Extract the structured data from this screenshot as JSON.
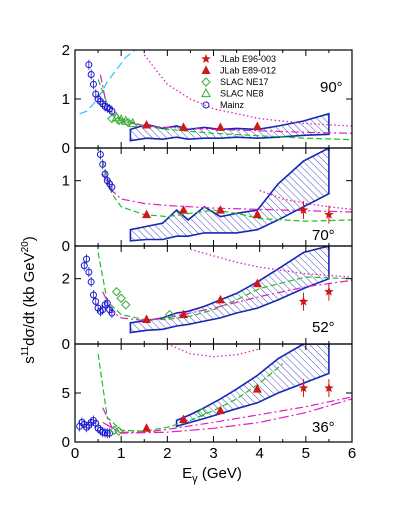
{
  "colors": {
    "band": "#1428b4",
    "jlab96": "#d01818",
    "jlab89": "#d01818",
    "slac_ne17": "#30b030",
    "slac_ne8": "#30b030",
    "mainz": "#1a1ad0",
    "green_curve": "#20c020",
    "magenta_curve": "#e020c0",
    "cyan_curve": "#20c8ff"
  },
  "axis_labels": {
    "ylabel_prefix": "s",
    "ylabel_exp": "11",
    "ylabel_main": "dσ/dt  (kb GeV",
    "ylabel_exp2": "20",
    "ylabel_tail": ")",
    "xlabel_main": "E",
    "xlabel_sub": "γ",
    "xlabel_unit": " (GeV)"
  },
  "legend": [
    {
      "label": "JLab E96-003",
      "marker": "star",
      "color": "#d01818"
    },
    {
      "label": "JLab E89-012",
      "marker": "triangle",
      "color": "#d01818"
    },
    {
      "label": "SLAC NE17",
      "marker": "diamond-open",
      "color": "#30b030"
    },
    {
      "label": "SLAC NE8",
      "marker": "triangle-open",
      "color": "#30b030"
    },
    {
      "label": "Mainz",
      "marker": "circle-open",
      "color": "#1a1ad0"
    }
  ],
  "x_ticks": [
    "0",
    "1",
    "2",
    "3",
    "4",
    "5",
    "6"
  ],
  "chart_data": {
    "type": "scatter",
    "xlim": [
      0,
      6
    ],
    "panels": [
      {
        "angle": "90°",
        "ylim": [
          0,
          2
        ],
        "y_ticks": [
          "0",
          "1",
          "2"
        ],
        "jlab_e89_012": {
          "x": [
            1.55,
            2.35,
            3.15,
            3.95
          ],
          "y": [
            0.47,
            0.42,
            0.42,
            0.44
          ]
        },
        "slac_ne8": {
          "x": [
            0.9,
            1.0,
            1.1,
            1.25
          ],
          "y": [
            0.62,
            0.58,
            0.55,
            0.5
          ]
        },
        "slac_ne17": {
          "x": [
            0.8,
            0.95,
            1.15
          ],
          "y": [
            0.6,
            0.56,
            0.52
          ]
        },
        "mainz": {
          "x": [
            0.3,
            0.35,
            0.4,
            0.45,
            0.5,
            0.55,
            0.6,
            0.65,
            0.7,
            0.75,
            0.8
          ],
          "y": [
            1.7,
            1.5,
            1.3,
            1.1,
            1.0,
            0.95,
            0.9,
            0.85,
            0.82,
            0.8,
            0.75
          ]
        },
        "band_upper": {
          "x": [
            1.2,
            1.55,
            1.9,
            2.2,
            2.45,
            2.8,
            3.15,
            3.5,
            3.95,
            4.4,
            4.95,
            5.5
          ],
          "y": [
            0.38,
            0.48,
            0.4,
            0.45,
            0.38,
            0.42,
            0.38,
            0.4,
            0.38,
            0.45,
            0.55,
            0.7
          ]
        },
        "band_lower": {
          "x": [
            1.2,
            1.55,
            1.9,
            2.2,
            2.45,
            2.8,
            3.15,
            3.5,
            3.95,
            4.4,
            4.95,
            5.5
          ],
          "y": [
            0.15,
            0.2,
            0.18,
            0.22,
            0.18,
            0.2,
            0.2,
            0.22,
            0.2,
            0.22,
            0.26,
            0.28
          ]
        },
        "green_curve": {
          "x": [
            0.5,
            0.7,
            1.0,
            1.5,
            2.0,
            3.0,
            4.0,
            5.0,
            6.0
          ],
          "y": [
            1.4,
            0.9,
            0.6,
            0.45,
            0.38,
            0.3,
            0.25,
            0.2,
            0.17
          ]
        },
        "magenta_dash": {
          "x": [
            0.55,
            0.7,
            1.0,
            1.5,
            2.0,
            3.0,
            4.0,
            5.0,
            6.0
          ],
          "y": [
            1.5,
            0.8,
            0.55,
            0.45,
            0.42,
            0.38,
            0.35,
            0.32,
            0.3
          ]
        },
        "magenta_dot": {
          "x": [
            1.5,
            2.0,
            2.5,
            3.0,
            4.0,
            5.0,
            6.0
          ],
          "y": [
            1.9,
            1.3,
            1.0,
            0.8,
            0.6,
            0.5,
            0.45
          ]
        },
        "cyan_curve": {
          "x": [
            0.1,
            0.25,
            0.4,
            0.55,
            0.7,
            0.9,
            1.1,
            1.3
          ],
          "y": [
            0.7,
            0.75,
            0.9,
            1.1,
            1.35,
            1.6,
            1.85,
            2.0
          ]
        }
      },
      {
        "angle": "70°",
        "ylim": [
          0,
          1.5
        ],
        "y_ticks": [
          "0",
          "1"
        ],
        "jlab_e96_003": {
          "x": [
            4.95,
            5.5
          ],
          "y": [
            0.55,
            0.48
          ]
        },
        "jlab_e89_012": {
          "x": [
            1.55,
            2.35,
            3.15,
            3.95
          ],
          "y": [
            0.48,
            0.55,
            0.55,
            0.48
          ]
        },
        "mainz": {
          "x": [
            0.55,
            0.6,
            0.65,
            0.7,
            0.75,
            0.8
          ],
          "y": [
            1.4,
            1.25,
            1.1,
            1.0,
            0.95,
            0.9
          ]
        },
        "band_upper": {
          "x": [
            1.2,
            1.55,
            1.9,
            2.2,
            2.45,
            2.8,
            3.15,
            3.5,
            3.95,
            4.4,
            4.95,
            5.5
          ],
          "y": [
            0.25,
            0.3,
            0.35,
            0.55,
            0.4,
            0.6,
            0.45,
            0.5,
            0.55,
            0.95,
            1.3,
            1.5
          ]
        },
        "band_lower": {
          "x": [
            1.2,
            1.55,
            1.9,
            2.2,
            2.45,
            2.8,
            3.15,
            3.5,
            3.95,
            4.4,
            4.95,
            5.5
          ],
          "y": [
            0.08,
            0.1,
            0.1,
            0.15,
            0.15,
            0.2,
            0.2,
            0.2,
            0.25,
            0.4,
            0.6,
            0.8
          ]
        },
        "green_curve": {
          "x": [
            0.6,
            0.8,
            1.0,
            1.5,
            2.0,
            2.5,
            3.0,
            3.5,
            4.0,
            5.0,
            6.0
          ],
          "y": [
            1.3,
            0.8,
            0.6,
            0.48,
            0.45,
            0.5,
            0.55,
            0.5,
            0.42,
            0.38,
            0.4
          ]
        },
        "magenta_dash": {
          "x": [
            0.6,
            0.8,
            1.0,
            1.5,
            2.0,
            3.0,
            4.0,
            5.0,
            6.0
          ],
          "y": [
            1.1,
            0.85,
            0.72,
            0.65,
            0.62,
            0.58,
            0.56,
            0.54,
            0.52
          ]
        },
        "magenta_dot": {
          "x": [
            4.0,
            4.5,
            5.0,
            5.5,
            6.0
          ],
          "y": [
            0.85,
            0.72,
            0.65,
            0.6,
            0.56
          ]
        }
      },
      {
        "angle": "52°",
        "ylim": [
          0,
          3
        ],
        "y_ticks": [
          "0",
          "2"
        ],
        "jlab_e96_003": {
          "x": [
            4.95,
            5.5
          ],
          "y": [
            1.3,
            1.6
          ]
        },
        "jlab_e89_012": {
          "x": [
            1.55,
            2.35,
            3.15,
            3.95
          ],
          "y": [
            0.75,
            0.9,
            1.35,
            1.85
          ]
        },
        "slac_ne17": {
          "x": [
            0.9,
            1.0,
            1.1,
            2.05
          ],
          "y": [
            1.6,
            1.4,
            1.2,
            0.9
          ]
        },
        "mainz": {
          "x": [
            0.2,
            0.25,
            0.3,
            0.35,
            0.4,
            0.45,
            0.5,
            0.55,
            0.6,
            0.65,
            0.7,
            0.75,
            0.8
          ],
          "y": [
            2.4,
            2.6,
            2.2,
            1.9,
            1.5,
            1.3,
            1.1,
            1.0,
            1.05,
            1.2,
            1.25,
            1.05,
            0.95
          ]
        },
        "band_upper": {
          "x": [
            1.2,
            1.55,
            1.9,
            2.2,
            2.45,
            2.8,
            3.15,
            3.5,
            3.95,
            4.4,
            4.95,
            5.5
          ],
          "y": [
            0.65,
            0.72,
            0.8,
            0.95,
            1.0,
            1.15,
            1.35,
            1.55,
            1.9,
            2.3,
            2.8,
            3.0
          ]
        },
        "band_lower": {
          "x": [
            1.2,
            1.55,
            1.9,
            2.2,
            2.45,
            2.8,
            3.15,
            3.5,
            3.95,
            4.4,
            4.95,
            5.5
          ],
          "y": [
            0.35,
            0.42,
            0.45,
            0.55,
            0.6,
            0.7,
            0.8,
            0.95,
            1.1,
            1.35,
            1.7,
            2.0
          ]
        },
        "green_curve": {
          "x": [
            0.5,
            0.7,
            1.0,
            1.5,
            2.0,
            2.5,
            3.0,
            3.5,
            4.0,
            5.0,
            6.0
          ],
          "y": [
            2.8,
            1.3,
            0.9,
            0.75,
            0.75,
            0.85,
            1.05,
            1.35,
            1.7,
            2.05,
            2.0
          ]
        },
        "magenta_dash": {
          "x": [
            0.6,
            0.8,
            1.0,
            1.5,
            2.0,
            3.0,
            4.0,
            5.0,
            6.0
          ],
          "y": [
            1.6,
            1.0,
            0.8,
            0.72,
            0.8,
            1.1,
            1.45,
            1.75,
            1.95
          ]
        },
        "magenta_dot": {
          "x": [
            2.5,
            3.0,
            3.5,
            4.0,
            4.5,
            5.0,
            5.5,
            6.0
          ],
          "y": [
            2.9,
            2.7,
            2.5,
            2.35,
            2.25,
            2.15,
            2.1,
            2.05
          ]
        }
      },
      {
        "angle": "36°",
        "ylim": [
          0,
          10
        ],
        "y_ticks": [
          "0",
          "5"
        ],
        "jlab_e96_003": {
          "x": [
            4.95,
            5.5
          ],
          "y": [
            5.5,
            5.5
          ]
        },
        "jlab_e89_012": {
          "x": [
            1.55,
            2.35,
            3.15,
            3.95
          ],
          "y": [
            1.4,
            2.3,
            3.2,
            5.4
          ]
        },
        "slac_ne17": {
          "x": [
            0.85,
            0.95,
            2.75
          ],
          "y": [
            1.2,
            1.1,
            3.0
          ]
        },
        "mainz": {
          "x": [
            0.1,
            0.15,
            0.2,
            0.25,
            0.3,
            0.35,
            0.4,
            0.45,
            0.5,
            0.55,
            0.6,
            0.65,
            0.7,
            0.75
          ],
          "y": [
            1.6,
            2.0,
            1.8,
            1.5,
            1.7,
            2.0,
            2.2,
            1.9,
            1.4,
            1.2,
            1.0,
            0.95,
            0.9,
            0.9
          ]
        },
        "band_upper": {
          "x": [
            2.2,
            2.5,
            2.8,
            3.15,
            3.5,
            3.95,
            4.4,
            4.95,
            5.5
          ],
          "y": [
            2.2,
            2.8,
            3.5,
            4.4,
            5.4,
            6.8,
            8.5,
            10.0,
            10.0
          ]
        },
        "band_lower": {
          "x": [
            2.2,
            2.5,
            2.8,
            3.15,
            3.5,
            3.95,
            4.4,
            4.95,
            5.5
          ],
          "y": [
            1.6,
            2.0,
            2.4,
            2.9,
            3.4,
            4.0,
            5.0,
            6.0,
            7.0
          ]
        },
        "green_curve": {
          "x": [
            0.5,
            0.7,
            1.0,
            1.5,
            2.0,
            2.5,
            3.0,
            3.5,
            4.0,
            4.5
          ],
          "y": [
            9.0,
            2.5,
            1.2,
            1.1,
            1.5,
            2.2,
            3.2,
            4.4,
            6.0,
            8.0
          ]
        },
        "magenta_dash": {
          "x": [
            0.6,
            0.8,
            1.0,
            1.5,
            2.0,
            3.0,
            4.0,
            5.0,
            6.0
          ],
          "y": [
            3.5,
            1.5,
            1.0,
            1.0,
            1.3,
            2.0,
            2.8,
            3.6,
            4.6
          ]
        },
        "magenta_dot": {
          "x": [
            2.0,
            2.5,
            3.0,
            3.5,
            4.0
          ],
          "y": [
            10.0,
            9.0,
            8.7,
            8.9,
            9.5
          ]
        },
        "magenta_dashdot": {
          "x": [
            0.6,
            1.0,
            2.0,
            3.0,
            4.0,
            5.0,
            6.0
          ],
          "y": [
            2.0,
            0.9,
            1.0,
            1.4,
            2.0,
            3.0,
            4.4
          ]
        }
      }
    ]
  }
}
